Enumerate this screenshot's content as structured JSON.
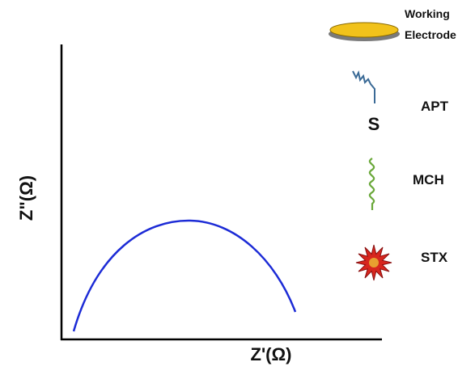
{
  "axes": {
    "y_label": "Z\"(Ω)",
    "x_label": "Z'(Ω)"
  },
  "legend": {
    "electrode": {
      "lines": [
        "Working",
        "Electrode"
      ]
    },
    "items": [
      {
        "label": "APT",
        "atom": "S"
      },
      {
        "label": "MCH"
      },
      {
        "label": "STX"
      }
    ]
  }
}
